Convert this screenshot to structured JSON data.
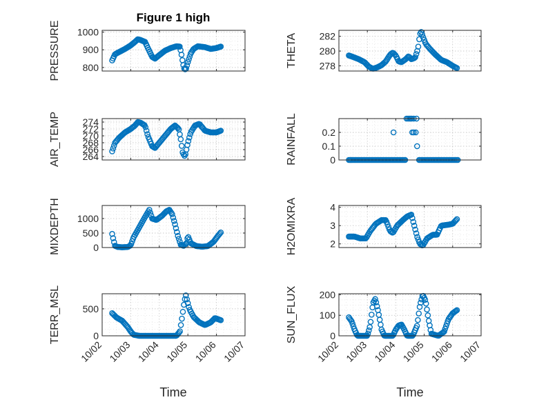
{
  "figure": {
    "title": "Figure 1 high",
    "marker_color": "#0072BD",
    "background": "#ffffff"
  },
  "chart_data": [
    {
      "type": "scatter",
      "title": "Figure 1 high",
      "xlabel": "",
      "ylabel": "PRESSURE",
      "ylim": [
        780,
        1010
      ],
      "yticks": [
        800,
        900,
        1000
      ],
      "xlim": [
        0,
        5
      ],
      "xticks": [
        0,
        1,
        2,
        3,
        4,
        5
      ],
      "xticklabels": [
        "10/02",
        "10/03",
        "10/04",
        "10/05",
        "10/06",
        "10/07"
      ],
      "show_xticklabels": false,
      "grid": true,
      "anchors": [
        [
          0.35,
          840
        ],
        [
          0.45,
          875
        ],
        [
          0.6,
          888
        ],
        [
          0.8,
          905
        ],
        [
          1.0,
          925
        ],
        [
          1.15,
          945
        ],
        [
          1.25,
          960
        ],
        [
          1.35,
          955
        ],
        [
          1.5,
          945
        ],
        [
          1.6,
          910
        ],
        [
          1.75,
          860
        ],
        [
          1.85,
          850
        ],
        [
          2.0,
          870
        ],
        [
          2.2,
          895
        ],
        [
          2.4,
          910
        ],
        [
          2.6,
          920
        ],
        [
          2.72,
          918
        ],
        [
          2.78,
          870
        ],
        [
          2.83,
          820
        ],
        [
          2.88,
          790
        ],
        [
          2.93,
          790
        ],
        [
          3.0,
          830
        ],
        [
          3.1,
          880
        ],
        [
          3.2,
          905
        ],
        [
          3.35,
          920
        ],
        [
          3.6,
          915
        ],
        [
          3.8,
          905
        ],
        [
          4.0,
          910
        ],
        [
          4.15,
          918
        ]
      ],
      "n_points": 120
    },
    {
      "type": "scatter",
      "ylabel": "THETA",
      "ylim": [
        277.3,
        282.8
      ],
      "yticks": [
        278,
        280,
        282
      ],
      "xlim": [
        0,
        5
      ],
      "xticks": [
        0,
        1,
        2,
        3,
        4,
        5
      ],
      "show_xticklabels": false,
      "grid": true,
      "anchors": [
        [
          0.35,
          279.4
        ],
        [
          0.5,
          279.2
        ],
        [
          0.7,
          278.9
        ],
        [
          0.9,
          278.5
        ],
        [
          1.05,
          277.9
        ],
        [
          1.2,
          277.6
        ],
        [
          1.35,
          277.8
        ],
        [
          1.5,
          278.1
        ],
        [
          1.65,
          278.6
        ],
        [
          1.8,
          279.5
        ],
        [
          1.9,
          279.8
        ],
        [
          2.0,
          279.4
        ],
        [
          2.1,
          278.6
        ],
        [
          2.2,
          278.5
        ],
        [
          2.35,
          278.9
        ],
        [
          2.45,
          279.3
        ],
        [
          2.55,
          278.9
        ],
        [
          2.68,
          279.1
        ],
        [
          2.78,
          280.3
        ],
        [
          2.85,
          282.3
        ],
        [
          2.9,
          282.6
        ],
        [
          2.95,
          282.0
        ],
        [
          3.05,
          281.0
        ],
        [
          3.2,
          280.3
        ],
        [
          3.4,
          279.5
        ],
        [
          3.6,
          278.8
        ],
        [
          3.8,
          278.5
        ],
        [
          4.0,
          278.0
        ],
        [
          4.15,
          277.7
        ]
      ],
      "n_points": 110
    },
    {
      "type": "scatter",
      "ylabel": "AIR_TEMP",
      "ylim": [
        263,
        275
      ],
      "yticks": [
        264,
        266,
        268,
        270,
        272,
        274
      ],
      "xlim": [
        0,
        5
      ],
      "xticks": [
        0,
        1,
        2,
        3,
        4,
        5
      ],
      "show_xticklabels": false,
      "grid": true,
      "anchors": [
        [
          0.35,
          265.5
        ],
        [
          0.45,
          268
        ],
        [
          0.6,
          269.5
        ],
        [
          0.8,
          271
        ],
        [
          1.0,
          272
        ],
        [
          1.15,
          273
        ],
        [
          1.25,
          274
        ],
        [
          1.35,
          273.8
        ],
        [
          1.5,
          273
        ],
        [
          1.6,
          270
        ],
        [
          1.75,
          267
        ],
        [
          1.85,
          266.5
        ],
        [
          2.0,
          268
        ],
        [
          2.2,
          270
        ],
        [
          2.4,
          272
        ],
        [
          2.55,
          273
        ],
        [
          2.68,
          272
        ],
        [
          2.75,
          269
        ],
        [
          2.82,
          265
        ],
        [
          2.9,
          264
        ],
        [
          3.0,
          268
        ],
        [
          3.1,
          271
        ],
        [
          3.25,
          273
        ],
        [
          3.4,
          273.5
        ],
        [
          3.6,
          271.5
        ],
        [
          3.8,
          271
        ],
        [
          4.0,
          271
        ],
        [
          4.15,
          271.5
        ]
      ],
      "n_points": 115
    },
    {
      "type": "scatter",
      "ylabel": "RAINFALL",
      "ylim": [
        0,
        0.3
      ],
      "yticks": [
        0,
        0.1,
        0.2
      ],
      "xlim": [
        0,
        5
      ],
      "xticks": [
        0,
        1,
        2,
        3,
        4,
        5
      ],
      "show_xticklabels": false,
      "grid": true,
      "zero_range": [
        [
          0.35,
          2.33
        ],
        [
          2.82,
          4.18
        ]
      ],
      "extra_points": [
        [
          1.92,
          0.2
        ],
        [
          2.38,
          0.3
        ],
        [
          2.43,
          0.3
        ],
        [
          2.48,
          0.3
        ],
        [
          2.52,
          0.3
        ],
        [
          2.56,
          0.3
        ],
        [
          2.63,
          0.3
        ],
        [
          2.58,
          0.2
        ],
        [
          2.63,
          0.2
        ],
        [
          2.7,
          0.2
        ],
        [
          2.73,
          0.3
        ],
        [
          2.75,
          0.1
        ]
      ],
      "n_points": 100
    },
    {
      "type": "scatter",
      "ylabel": "MIXDEPTH",
      "ylim": [
        0,
        1450
      ],
      "yticks": [
        0,
        500,
        1000
      ],
      "xlim": [
        0,
        5
      ],
      "xticks": [
        0,
        1,
        2,
        3,
        4,
        5
      ],
      "show_xticklabels": false,
      "grid": true,
      "anchors": [
        [
          0.35,
          470
        ],
        [
          0.4,
          250
        ],
        [
          0.45,
          60
        ],
        [
          0.55,
          20
        ],
        [
          0.7,
          10
        ],
        [
          0.9,
          20
        ],
        [
          1.0,
          80
        ],
        [
          1.1,
          350
        ],
        [
          1.3,
          700
        ],
        [
          1.5,
          1050
        ],
        [
          1.65,
          1300
        ],
        [
          1.75,
          1000
        ],
        [
          1.9,
          950
        ],
        [
          2.1,
          1100
        ],
        [
          2.25,
          1250
        ],
        [
          2.35,
          1300
        ],
        [
          2.45,
          1150
        ],
        [
          2.55,
          800
        ],
        [
          2.65,
          400
        ],
        [
          2.75,
          100
        ],
        [
          2.85,
          60
        ],
        [
          2.95,
          150
        ],
        [
          3.0,
          400
        ],
        [
          3.1,
          150
        ],
        [
          3.3,
          50
        ],
        [
          3.5,
          30
        ],
        [
          3.7,
          50
        ],
        [
          3.9,
          200
        ],
        [
          4.05,
          400
        ],
        [
          4.15,
          520
        ]
      ],
      "n_points": 115
    },
    {
      "type": "scatter",
      "ylabel": "H2OMIXRA",
      "ylim": [
        1.8,
        4.1
      ],
      "yticks": [
        2,
        3,
        4
      ],
      "xlim": [
        0,
        5
      ],
      "xticks": [
        0,
        1,
        2,
        3,
        4,
        5
      ],
      "show_xticklabels": false,
      "grid": true,
      "anchors": [
        [
          0.35,
          2.4
        ],
        [
          0.55,
          2.4
        ],
        [
          0.75,
          2.3
        ],
        [
          0.95,
          2.3
        ],
        [
          1.1,
          2.7
        ],
        [
          1.3,
          3.1
        ],
        [
          1.5,
          3.3
        ],
        [
          1.65,
          3.3
        ],
        [
          1.8,
          2.7
        ],
        [
          1.9,
          2.6
        ],
        [
          2.05,
          3.0
        ],
        [
          2.25,
          3.3
        ],
        [
          2.4,
          3.5
        ],
        [
          2.55,
          3.6
        ],
        [
          2.65,
          3.0
        ],
        [
          2.75,
          2.4
        ],
        [
          2.85,
          2.0
        ],
        [
          2.95,
          1.9
        ],
        [
          3.1,
          2.3
        ],
        [
          3.3,
          2.5
        ],
        [
          3.45,
          2.5
        ],
        [
          3.6,
          3.0
        ],
        [
          3.85,
          3.05
        ],
        [
          4.0,
          3.1
        ],
        [
          4.15,
          3.35
        ]
      ],
      "n_points": 110
    },
    {
      "type": "scatter",
      "ylabel": "TERR_MSL",
      "ylim": [
        0,
        780
      ],
      "yticks": [
        0,
        500
      ],
      "xlim": [
        0,
        5
      ],
      "xticks": [
        0,
        1,
        2,
        3,
        4,
        5
      ],
      "xticklabels": [
        "10/02",
        "10/03",
        "10/04",
        "10/05",
        "10/06",
        "10/07"
      ],
      "show_xticklabels": true,
      "xlabel": "Time",
      "grid": true,
      "anchors": [
        [
          0.35,
          420
        ],
        [
          0.5,
          340
        ],
        [
          0.7,
          280
        ],
        [
          0.9,
          160
        ],
        [
          1.0,
          80
        ],
        [
          1.1,
          20
        ],
        [
          1.3,
          0
        ],
        [
          2.0,
          0
        ],
        [
          2.6,
          0
        ],
        [
          2.72,
          80
        ],
        [
          2.8,
          350
        ],
        [
          2.88,
          650
        ],
        [
          2.93,
          750
        ],
        [
          3.05,
          500
        ],
        [
          3.2,
          350
        ],
        [
          3.4,
          250
        ],
        [
          3.6,
          200
        ],
        [
          3.8,
          250
        ],
        [
          3.95,
          330
        ],
        [
          4.15,
          290
        ]
      ],
      "n_points": 110
    },
    {
      "type": "scatter",
      "ylabel": "SUN_FLUX",
      "ylim": [
        0,
        205
      ],
      "yticks": [
        0,
        100,
        200
      ],
      "xlim": [
        0,
        5
      ],
      "xticks": [
        0,
        1,
        2,
        3,
        4,
        5
      ],
      "xticklabels": [
        "10/02",
        "10/03",
        "10/04",
        "10/05",
        "10/06",
        "10/07"
      ],
      "show_xticklabels": true,
      "xlabel": "Time",
      "grid": true,
      "anchors": [
        [
          0.35,
          90
        ],
        [
          0.45,
          70
        ],
        [
          0.55,
          30
        ],
        [
          0.65,
          0
        ],
        [
          1.0,
          0
        ],
        [
          1.1,
          50
        ],
        [
          1.2,
          160
        ],
        [
          1.28,
          180
        ],
        [
          1.38,
          120
        ],
        [
          1.5,
          30
        ],
        [
          1.6,
          0
        ],
        [
          1.9,
          0
        ],
        [
          2.0,
          30
        ],
        [
          2.1,
          50
        ],
        [
          2.2,
          55
        ],
        [
          2.3,
          30
        ],
        [
          2.4,
          0
        ],
        [
          2.6,
          0
        ],
        [
          2.75,
          50
        ],
        [
          2.85,
          150
        ],
        [
          2.95,
          200
        ],
        [
          3.05,
          170
        ],
        [
          3.15,
          80
        ],
        [
          3.25,
          10
        ],
        [
          3.5,
          0
        ],
        [
          3.7,
          20
        ],
        [
          3.85,
          80
        ],
        [
          4.0,
          110
        ],
        [
          4.15,
          125
        ]
      ],
      "n_points": 120
    }
  ],
  "axis_labels": {
    "pressure": "PRESSURE",
    "theta": "THETA",
    "air_temp": "AIR_TEMP",
    "rainfall": "RAINFALL",
    "mixdepth": "MIXDEPTH",
    "h2omixra": "H2OMIXRA",
    "terr_msl": "TERR_MSL",
    "sun_flux": "SUN_FLUX",
    "time_left": "Time",
    "time_right": "Time"
  }
}
